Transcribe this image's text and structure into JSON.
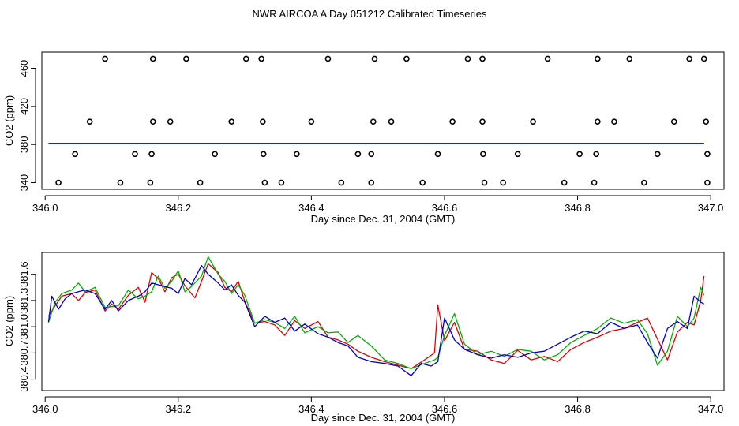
{
  "figure_title": "NWR AIRCOA A  Day 051212  Calibrated Timeseries",
  "colors": {
    "series_red": "#e00000",
    "series_green": "#00b000",
    "series_blue": "#0000d0",
    "cal_points": "#000000"
  },
  "chart_data": [
    {
      "type": "scatter",
      "title": "",
      "xlabel": "Day since Dec. 31, 2004 (GMT)",
      "ylabel": "CO2 (ppm)",
      "xlim": [
        345.995,
        347.02
      ],
      "ylim": [
        333,
        477
      ],
      "xticks": [
        346.0,
        346.2,
        346.4,
        346.6,
        346.8,
        347.0
      ],
      "xtick_labels": [
        "346.0",
        "346.2",
        "346.4",
        "346.6",
        "346.8",
        "347.0"
      ],
      "yticks": [
        340,
        380,
        420,
        460
      ],
      "ytick_labels": [
        "340",
        "380",
        "420",
        "460"
      ],
      "calibration_points": [
        [
          346.02,
          340
        ],
        [
          346.113,
          340
        ],
        [
          346.158,
          340
        ],
        [
          346.233,
          340
        ],
        [
          346.33,
          340
        ],
        [
          346.355,
          340
        ],
        [
          346.445,
          340
        ],
        [
          346.49,
          340
        ],
        [
          346.567,
          340
        ],
        [
          346.66,
          340
        ],
        [
          346.688,
          340
        ],
        [
          346.78,
          340
        ],
        [
          346.825,
          340
        ],
        [
          346.9,
          340
        ],
        [
          346.995,
          340
        ],
        [
          346.045,
          370
        ],
        [
          346.135,
          370
        ],
        [
          346.16,
          370
        ],
        [
          346.255,
          370
        ],
        [
          346.328,
          370
        ],
        [
          346.378,
          370
        ],
        [
          346.47,
          370
        ],
        [
          346.49,
          370
        ],
        [
          346.59,
          370
        ],
        [
          346.658,
          370
        ],
        [
          346.71,
          370
        ],
        [
          346.803,
          370
        ],
        [
          346.828,
          370
        ],
        [
          346.92,
          370
        ],
        [
          346.995,
          370
        ],
        [
          346.067,
          404
        ],
        [
          346.162,
          404
        ],
        [
          346.188,
          404
        ],
        [
          346.28,
          404
        ],
        [
          346.327,
          404
        ],
        [
          346.4,
          404
        ],
        [
          346.493,
          404
        ],
        [
          346.52,
          404
        ],
        [
          346.612,
          404
        ],
        [
          346.657,
          404
        ],
        [
          346.733,
          404
        ],
        [
          346.83,
          404
        ],
        [
          346.855,
          404
        ],
        [
          346.945,
          404
        ],
        [
          346.993,
          404
        ],
        [
          346.09,
          470
        ],
        [
          346.162,
          470
        ],
        [
          346.212,
          470
        ],
        [
          346.302,
          470
        ],
        [
          346.325,
          470
        ],
        [
          346.425,
          470
        ],
        [
          346.495,
          470
        ],
        [
          346.543,
          470
        ],
        [
          346.635,
          470
        ],
        [
          346.657,
          470
        ],
        [
          346.755,
          470
        ],
        [
          346.83,
          470
        ],
        [
          346.878,
          470
        ],
        [
          346.968,
          470
        ],
        [
          346.99,
          470
        ]
      ],
      "baseline_series": [
        {
          "name": "red",
          "color": "#e00000",
          "x": [
            346.005,
            346.99
          ],
          "y": [
            381,
            381
          ]
        },
        {
          "name": "green",
          "color": "#00b000",
          "x": [
            346.005,
            346.99
          ],
          "y": [
            381,
            381
          ]
        },
        {
          "name": "blue",
          "color": "#0000d0",
          "x": [
            346.005,
            346.99
          ],
          "y": [
            381,
            381
          ]
        }
      ]
    },
    {
      "type": "line",
      "title": "",
      "xlabel": "Day since Dec. 31, 2004 (GMT)",
      "ylabel": "CO2 (ppm)",
      "xlim": [
        345.995,
        347.02
      ],
      "ylim": [
        380.27,
        381.85
      ],
      "xticks": [
        346.0,
        346.2,
        346.4,
        346.6,
        346.8,
        347.0
      ],
      "xtick_labels": [
        "346.0",
        "346.2",
        "346.4",
        "346.6",
        "346.8",
        "347.0"
      ],
      "yticks": [
        380.4,
        380.7,
        381.0,
        381.3,
        381.6
      ],
      "ytick_labels": [
        "380.4",
        "380.7",
        "381.0",
        "381.3",
        "381.6"
      ],
      "series": [
        {
          "name": "red",
          "color": "#e00000",
          "x": [
            346.005,
            346.015,
            346.025,
            346.04,
            346.05,
            346.06,
            346.075,
            346.09,
            346.1,
            346.11,
            346.125,
            346.14,
            346.15,
            346.16,
            346.17,
            346.18,
            346.19,
            346.2,
            346.21,
            346.225,
            346.235,
            346.245,
            346.26,
            346.27,
            346.28,
            346.29,
            346.3,
            346.315,
            346.33,
            346.345,
            346.36,
            346.375,
            346.39,
            346.41,
            346.425,
            346.44,
            346.455,
            346.47,
            346.49,
            346.51,
            346.53,
            346.55,
            346.57,
            346.585,
            346.59,
            346.6,
            346.615,
            346.63,
            346.65,
            346.67,
            346.69,
            346.71,
            346.73,
            346.75,
            346.77,
            346.79,
            346.81,
            346.83,
            346.85,
            346.87,
            346.89,
            346.905,
            346.92,
            346.935,
            346.95,
            346.965,
            346.975,
            346.985,
            346.99
          ],
          "y": [
            381.12,
            381.24,
            381.35,
            381.38,
            381.3,
            381.39,
            381.42,
            381.18,
            381.26,
            381.2,
            381.36,
            381.45,
            381.28,
            381.62,
            381.55,
            381.4,
            381.56,
            381.6,
            381.47,
            381.33,
            381.52,
            381.72,
            381.62,
            381.45,
            381.4,
            381.52,
            381.29,
            381.04,
            381.06,
            381.02,
            380.9,
            381.07,
            380.98,
            381.06,
            380.88,
            380.85,
            380.8,
            380.72,
            380.65,
            380.6,
            380.56,
            380.52,
            380.62,
            380.7,
            381.25,
            380.84,
            381.05,
            380.74,
            380.72,
            380.62,
            380.58,
            380.73,
            380.62,
            380.66,
            380.6,
            380.74,
            380.82,
            380.88,
            380.95,
            380.98,
            381.05,
            381.1,
            380.86,
            380.62,
            380.94,
            381.05,
            381.02,
            381.3,
            381.58
          ]
        },
        {
          "name": "green",
          "color": "#00b000",
          "x": [
            346.005,
            346.015,
            346.025,
            346.04,
            346.05,
            346.06,
            346.075,
            346.09,
            346.1,
            346.11,
            346.125,
            346.14,
            346.15,
            346.16,
            346.17,
            346.18,
            346.19,
            346.2,
            346.21,
            346.22,
            346.235,
            346.245,
            346.26,
            346.27,
            346.28,
            346.29,
            346.3,
            346.315,
            346.33,
            346.345,
            346.36,
            346.375,
            346.39,
            346.41,
            346.425,
            346.44,
            346.455,
            346.47,
            346.49,
            346.51,
            346.53,
            346.55,
            346.57,
            346.585,
            346.59,
            346.6,
            346.615,
            346.63,
            346.65,
            346.67,
            346.69,
            346.71,
            346.73,
            346.75,
            346.77,
            346.79,
            346.81,
            346.83,
            346.85,
            346.87,
            346.89,
            346.905,
            346.92,
            346.935,
            346.95,
            346.965,
            346.975,
            346.985,
            346.99
          ],
          "y": [
            381.05,
            381.28,
            381.38,
            381.42,
            381.5,
            381.4,
            381.45,
            381.22,
            381.23,
            381.24,
            381.42,
            381.32,
            381.35,
            381.4,
            381.58,
            381.44,
            381.52,
            381.64,
            381.4,
            381.46,
            381.58,
            381.8,
            381.6,
            381.52,
            381.38,
            381.48,
            381.36,
            381.04,
            381.08,
            381.05,
            380.98,
            381.12,
            380.93,
            381.0,
            380.93,
            380.94,
            380.82,
            380.9,
            380.78,
            380.62,
            380.58,
            380.52,
            380.58,
            380.62,
            380.65,
            380.9,
            381.15,
            380.8,
            380.68,
            380.72,
            380.66,
            380.74,
            380.72,
            380.62,
            380.68,
            380.82,
            380.9,
            380.98,
            381.1,
            381.04,
            381.08,
            380.92,
            380.56,
            380.72,
            381.12,
            381.0,
            381.1,
            381.45,
            381.36
          ]
        },
        {
          "name": "blue",
          "color": "#0000d0",
          "x": [
            346.005,
            346.01,
            346.02,
            346.03,
            346.04,
            346.05,
            346.06,
            346.075,
            346.09,
            346.1,
            346.11,
            346.125,
            346.14,
            346.15,
            346.16,
            346.17,
            346.18,
            346.19,
            346.2,
            346.21,
            346.22,
            346.235,
            346.245,
            346.26,
            346.27,
            346.28,
            346.29,
            346.3,
            346.315,
            346.33,
            346.345,
            346.36,
            346.375,
            346.39,
            346.41,
            346.425,
            346.44,
            346.455,
            346.47,
            346.49,
            346.51,
            346.53,
            346.55,
            346.565,
            346.58,
            346.59,
            346.6,
            346.615,
            346.63,
            346.65,
            346.67,
            346.69,
            346.71,
            346.73,
            346.75,
            346.77,
            346.79,
            346.81,
            346.83,
            346.85,
            346.87,
            346.89,
            346.905,
            346.92,
            346.935,
            346.95,
            346.965,
            346.975,
            346.985,
            346.99
          ],
          "y": [
            381.05,
            381.35,
            381.2,
            381.32,
            381.38,
            381.4,
            381.42,
            381.38,
            381.2,
            381.3,
            381.18,
            381.3,
            381.35,
            381.4,
            381.5,
            381.48,
            381.46,
            381.44,
            381.38,
            381.55,
            381.48,
            381.7,
            381.6,
            381.5,
            381.42,
            381.48,
            381.36,
            381.28,
            381.0,
            381.12,
            381.05,
            381.1,
            380.95,
            381.03,
            380.92,
            380.88,
            380.82,
            380.78,
            380.65,
            380.6,
            380.58,
            380.55,
            380.44,
            380.58,
            380.55,
            380.6,
            381.1,
            380.85,
            380.74,
            380.68,
            380.64,
            380.68,
            380.65,
            380.7,
            380.72,
            380.8,
            380.88,
            380.95,
            380.92,
            381.05,
            380.98,
            381.02,
            380.82,
            380.64,
            380.98,
            381.06,
            380.98,
            381.35,
            381.28,
            381.26
          ]
        }
      ]
    }
  ]
}
